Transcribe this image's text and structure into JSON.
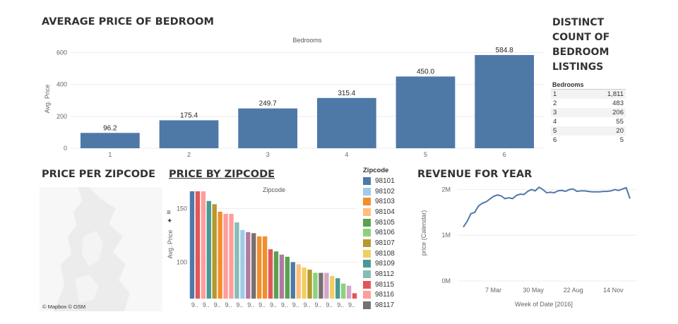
{
  "titles": {
    "avg_price_bedroom": "AVERAGE PRICE OF BEDROOM",
    "distinct_count": "DISTINCT COUNT OF BEDROOM LISTINGS",
    "price_per_zipcode": "PRICE PER ZIPCODE",
    "price_by_zipcode": "PRICE BY ZIPCODE",
    "revenue_for_year": "REVENUE FOR YEAR"
  },
  "bedroom_table": {
    "header": "Bedrooms",
    "rows": [
      {
        "bedrooms": "1",
        "count": "1,811"
      },
      {
        "bedrooms": "2",
        "count": "483"
      },
      {
        "bedrooms": "3",
        "count": "206"
      },
      {
        "bedrooms": "4",
        "count": "55"
      },
      {
        "bedrooms": "5",
        "count": "20"
      },
      {
        "bedrooms": "6",
        "count": "5"
      }
    ]
  },
  "map": {
    "credit": "© Mapbox © OSM"
  },
  "legend": {
    "title": "Zipcode",
    "items": [
      {
        "label": "98101",
        "color": "#4e79a7"
      },
      {
        "label": "98102",
        "color": "#a0cbe8"
      },
      {
        "label": "98103",
        "color": "#f28e2b"
      },
      {
        "label": "98104",
        "color": "#ffbe7d"
      },
      {
        "label": "98105",
        "color": "#59a14f"
      },
      {
        "label": "98106",
        "color": "#8cd17d"
      },
      {
        "label": "98107",
        "color": "#b6992d"
      },
      {
        "label": "98108",
        "color": "#f1ce63"
      },
      {
        "label": "98109",
        "color": "#499894"
      },
      {
        "label": "98112",
        "color": "#86bcb6"
      },
      {
        "label": "98115",
        "color": "#e15759"
      },
      {
        "label": "98116",
        "color": "#ff9d9a"
      },
      {
        "label": "98117",
        "color": "#79706e"
      }
    ]
  },
  "chart_data": [
    {
      "type": "bar",
      "title": "AVERAGE PRICE OF BEDROOM",
      "header": "Bedrooms",
      "categories": [
        "1",
        "2",
        "3",
        "4",
        "5",
        "6"
      ],
      "values": [
        96.2,
        175.4,
        249.7,
        315.4,
        450.0,
        584.8
      ],
      "value_labels": [
        "96.2",
        "175.4",
        "249.7",
        "315.4",
        "450.0",
        "584.8"
      ],
      "ylabel": "Avg. Price",
      "yticks": [
        "0",
        "200",
        "400",
        "600"
      ],
      "ylim": [
        0,
        620
      ],
      "color": "#4e79a7"
    },
    {
      "type": "bar",
      "title": "PRICE BY ZIPCODE",
      "header": "Zipcode",
      "ylabel": "Avg. Price",
      "yticks": [
        "100",
        "150"
      ],
      "ylim": [
        66,
        168
      ],
      "tick_label": "9..",
      "values": [
        166,
        166,
        166,
        157,
        154,
        147,
        145,
        145,
        137,
        130,
        128,
        127,
        124,
        124,
        112,
        110,
        107,
        105,
        100,
        98,
        95,
        93,
        90,
        90,
        90,
        87,
        85,
        80,
        78,
        71
      ],
      "colors": [
        "#4e79a7",
        "#e15759",
        "#ff9d9a",
        "#499894",
        "#b6992d",
        "#f28e2b",
        "#ff9d9a",
        "#ff9d9a",
        "#86bcb6",
        "#a0cbe8",
        "#b07aa1",
        "#79706e",
        "#f28e2b",
        "#f28e2b",
        "#e15759",
        "#59a14f",
        "#b07aa1",
        "#59a14f",
        "#4e79a7",
        "#ffbe7d",
        "#f1ce63",
        "#b6992d",
        "#8cd17d",
        "#79706e",
        "#d4a6c8",
        "#f1ce63",
        "#499894",
        "#8cd17d",
        "#d4a6c8",
        "#e15759"
      ]
    },
    {
      "type": "line",
      "title": "REVENUE FOR YEAR",
      "xlabel": "Week of Date [2016]",
      "ylabel": "price (Calendar)",
      "xticks": [
        "7 Mar",
        "30 May",
        "22 Aug",
        "14 Nov"
      ],
      "yticks": [
        "0M",
        "1M",
        "2M"
      ],
      "ylim": [
        0,
        2.1
      ],
      "values": [
        1.18,
        1.3,
        1.47,
        1.5,
        1.64,
        1.7,
        1.73,
        1.79,
        1.85,
        1.88,
        1.86,
        1.8,
        1.82,
        1.8,
        1.87,
        1.9,
        1.89,
        1.96,
        2.0,
        1.97,
        2.05,
        2.0,
        1.93,
        1.94,
        1.93,
        1.97,
        1.98,
        1.96,
        2.0,
        2.01,
        1.96,
        1.97,
        1.97,
        1.96,
        1.95,
        1.95,
        1.95,
        1.96,
        1.96,
        1.97,
        2.0,
        1.98,
        2.01,
        2.04,
        1.8
      ]
    }
  ]
}
